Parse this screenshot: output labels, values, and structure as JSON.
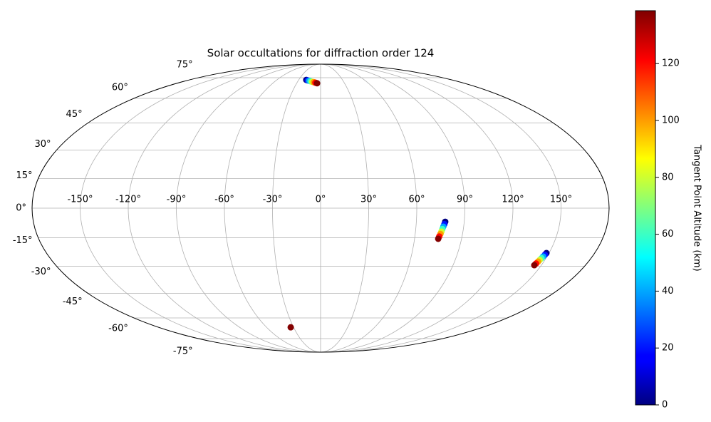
{
  "chart_data": {
    "type": "scatter",
    "projection": "mollweide",
    "title": "Solar occultations for diffraction order 124",
    "colorbar_label": "Tangent Point Altitude (km)",
    "colormap": "jet",
    "clim": [
      0,
      138.6
    ],
    "cticks": [
      0,
      20,
      40,
      60,
      80,
      100,
      120
    ],
    "grid": true,
    "xlim": [
      -180,
      180
    ],
    "ylim": [
      -90,
      90
    ],
    "xticks": [
      {
        "value": -150,
        "label": "-150°"
      },
      {
        "value": -120,
        "label": "-120°"
      },
      {
        "value": -90,
        "label": "-90°"
      },
      {
        "value": -60,
        "label": "-60°"
      },
      {
        "value": -30,
        "label": "-30°"
      },
      {
        "value": 0,
        "label": "0°"
      },
      {
        "value": 30,
        "label": "30°"
      },
      {
        "value": 60,
        "label": "60°"
      },
      {
        "value": 90,
        "label": "90°"
      },
      {
        "value": 120,
        "label": "120°"
      },
      {
        "value": 150,
        "label": "150°"
      }
    ],
    "yticks": [
      {
        "value": -75,
        "label": "-75°"
      },
      {
        "value": -60,
        "label": "-60°"
      },
      {
        "value": -45,
        "label": "-45°"
      },
      {
        "value": -30,
        "label": "-30°"
      },
      {
        "value": -15,
        "label": "-15°"
      },
      {
        "value": 0,
        "label": "0°"
      },
      {
        "value": 15,
        "label": "15°"
      },
      {
        "value": 30,
        "label": "30°"
      },
      {
        "value": 45,
        "label": "45°"
      },
      {
        "value": 60,
        "label": "60°"
      },
      {
        "value": 75,
        "label": "75°"
      }
    ],
    "x": [
      -19.6,
      -17.4,
      -15.3,
      -13.1,
      -10.9,
      -8.7,
      -6.6,
      -4.4,
      78.1,
      77.7,
      77.2,
      76.8,
      76.4,
      76.0,
      75.5,
      75.1,
      148.3,
      147.9,
      147.4,
      147.0,
      146.5,
      146.1,
      145.6,
      145.2,
      -33.2
    ],
    "y": [
      73.2,
      72.8,
      72.5,
      72.1,
      71.7,
      71.4,
      71.0,
      70.6,
      -6.9,
      -8.1,
      -9.4,
      -10.6,
      -11.9,
      -13.1,
      -14.4,
      -15.6,
      -23.0,
      -23.9,
      -24.8,
      -25.7,
      -26.6,
      -27.5,
      -28.5,
      -29.4,
      -66.4
    ],
    "c": [
      0,
      20,
      40,
      60,
      80,
      100,
      120,
      138,
      0,
      20,
      40,
      60,
      80,
      100,
      120,
      138,
      0,
      20,
      40,
      60,
      80,
      100,
      120,
      138,
      138
    ]
  }
}
